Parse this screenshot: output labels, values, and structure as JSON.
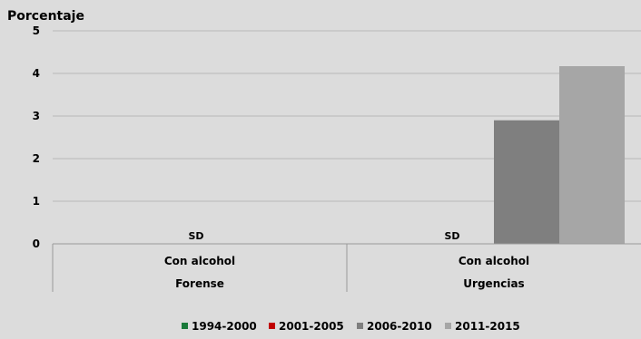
{
  "chart_data": {
    "type": "bar",
    "ylabel": "Porcentaje",
    "ylim": [
      0,
      5
    ],
    "yticks": [
      0,
      1,
      2,
      3,
      4,
      5
    ],
    "grid": true,
    "legend_position": "bottom",
    "group_labels": [
      "Forense",
      "Urgencias"
    ],
    "categories": [
      "Con alcohol",
      "Con alcohol"
    ],
    "series": [
      {
        "name": "1994-2000",
        "color": "#1a7a3a",
        "values": [
          null,
          null
        ]
      },
      {
        "name": "2001-2005",
        "color": "#c00000",
        "values": [
          null,
          null
        ]
      },
      {
        "name": "2006-2010",
        "color": "#7f7f7f",
        "values": [
          null,
          2.9
        ]
      },
      {
        "name": "2011-2015",
        "color": "#a6a6a6",
        "values": [
          null,
          4.17
        ]
      }
    ],
    "annotations": [
      {
        "category_index": 0,
        "text": "SD"
      },
      {
        "category_index": 1,
        "text": "SD"
      }
    ]
  }
}
